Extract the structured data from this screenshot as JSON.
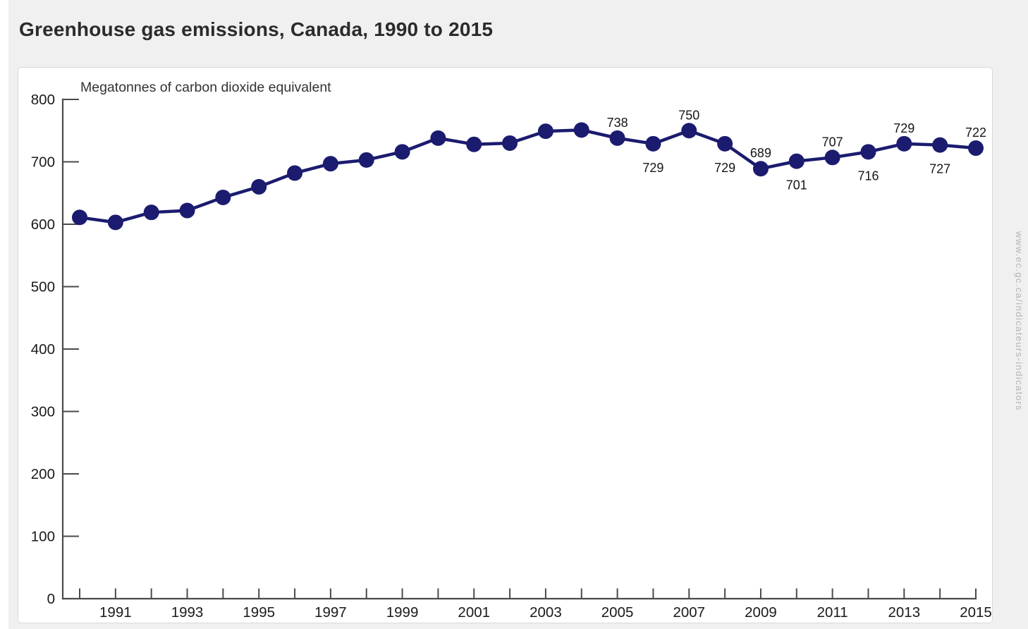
{
  "page": {
    "title": "Greenhouse gas emissions, Canada, 1990 to 2015",
    "watermark": "www.ec.gc.ca/indicateurs-indicators"
  },
  "chart_data": {
    "type": "line",
    "title": "Greenhouse gas emissions, Canada, 1990 to 2015",
    "ylabel": "Megatonnes of carbon dioxide equivalent",
    "xlabel": "",
    "x": [
      1990,
      1991,
      1992,
      1993,
      1994,
      1995,
      1996,
      1997,
      1998,
      1999,
      2000,
      2001,
      2002,
      2003,
      2004,
      2005,
      2006,
      2007,
      2008,
      2009,
      2010,
      2011,
      2012,
      2013,
      2014,
      2015
    ],
    "values": [
      611,
      603,
      619,
      622,
      643,
      660,
      682,
      697,
      703,
      716,
      738,
      728,
      730,
      749,
      751,
      738,
      729,
      750,
      729,
      689,
      701,
      707,
      716,
      729,
      727,
      722
    ],
    "ylim": [
      0,
      800
    ],
    "ytick_step": 100,
    "xtick_label_years": [
      1991,
      1993,
      1995,
      1997,
      1999,
      2001,
      2003,
      2005,
      2007,
      2009,
      2011,
      2013,
      2015
    ],
    "point_labels": [
      {
        "year": 2005,
        "text": "738",
        "pos": "above"
      },
      {
        "year": 2006,
        "text": "729",
        "pos": "below"
      },
      {
        "year": 2007,
        "text": "750",
        "pos": "above"
      },
      {
        "year": 2008,
        "text": "729",
        "pos": "below"
      },
      {
        "year": 2009,
        "text": "689",
        "pos": "above"
      },
      {
        "year": 2010,
        "text": "701",
        "pos": "below"
      },
      {
        "year": 2011,
        "text": "707",
        "pos": "above"
      },
      {
        "year": 2012,
        "text": "716",
        "pos": "below"
      },
      {
        "year": 2013,
        "text": "729",
        "pos": "above"
      },
      {
        "year": 2014,
        "text": "727",
        "pos": "below"
      },
      {
        "year": 2015,
        "text": "722",
        "pos": "above"
      }
    ],
    "grid": false,
    "legend_position": "none",
    "colors": {
      "line": "#1b1b6f",
      "marker": "#1b1b6f",
      "axis": "#4a4a4a",
      "tick_text": "#1a1a1a",
      "point_label_text": "#161616",
      "ylabel_text": "#333333"
    }
  }
}
